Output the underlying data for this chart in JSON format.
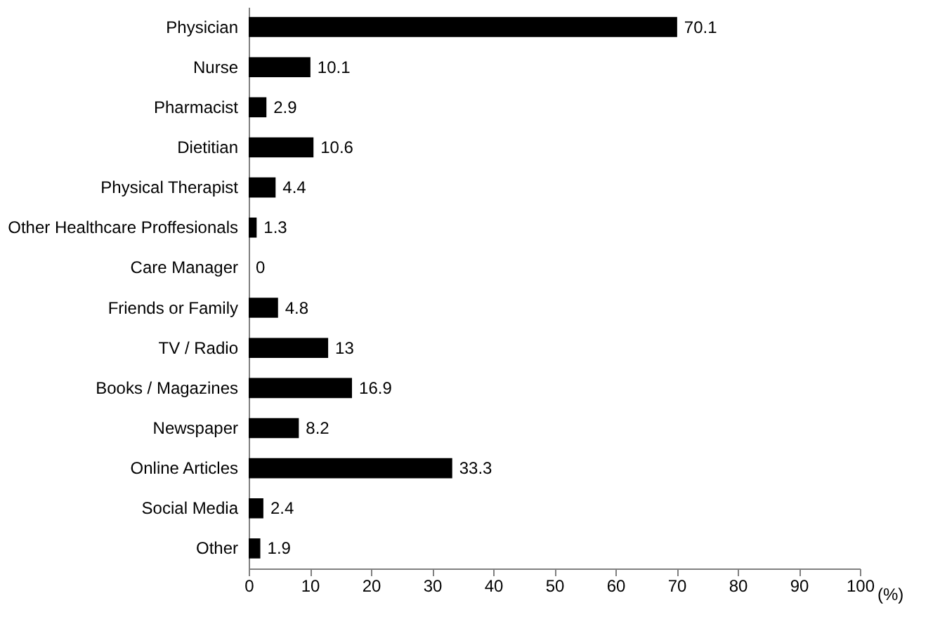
{
  "chart_data": {
    "type": "bar",
    "orientation": "horizontal",
    "xlabel": "(%)",
    "categories": [
      "Physician",
      "Nurse",
      "Pharmacist",
      "Dietitian",
      "Physical Therapist",
      "Other Healthcare Proffesionals",
      "Care Manager",
      "Friends or Family",
      "TV / Radio",
      "Books / Magazines",
      "Newspaper",
      "Online Articles",
      "Social Media",
      "Other"
    ],
    "values": [
      70.1,
      10.1,
      2.9,
      10.6,
      4.4,
      1.3,
      0,
      4.8,
      13,
      16.9,
      8.2,
      33.3,
      2.4,
      1.9
    ],
    "color": "#000000",
    "xlim": [
      0,
      100
    ],
    "xticks": [
      0,
      10,
      20,
      30,
      40,
      50,
      60,
      70,
      80,
      90,
      100
    ],
    "data_labels": true,
    "grid": false
  }
}
